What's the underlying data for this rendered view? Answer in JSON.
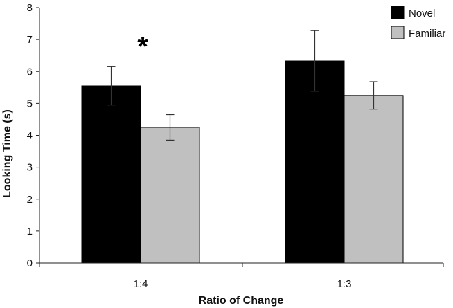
{
  "chart_data": {
    "type": "bar",
    "title": "",
    "xlabel": "Ratio of Change",
    "ylabel": "Looking Time (s)",
    "ylim": [
      0,
      8
    ],
    "yticks": [
      "0",
      "1",
      "2",
      "3",
      "4",
      "5",
      "6",
      "7",
      "8"
    ],
    "categories": [
      "1:4",
      "1:3"
    ],
    "series": [
      {
        "name": "Novel",
        "color": "#000000",
        "values": [
          5.55,
          6.33
        ],
        "error": [
          0.6,
          0.95
        ]
      },
      {
        "name": "Familiar",
        "color": "#c0c0c0",
        "values": [
          4.25,
          5.25
        ],
        "error": [
          0.4,
          0.43
        ]
      }
    ],
    "legend": {
      "position": "top-right",
      "entries": [
        "Novel",
        "Familiar"
      ]
    },
    "annotations": [
      {
        "text": "*",
        "category": "1:4",
        "y": 7.1
      }
    ],
    "grid": false
  }
}
